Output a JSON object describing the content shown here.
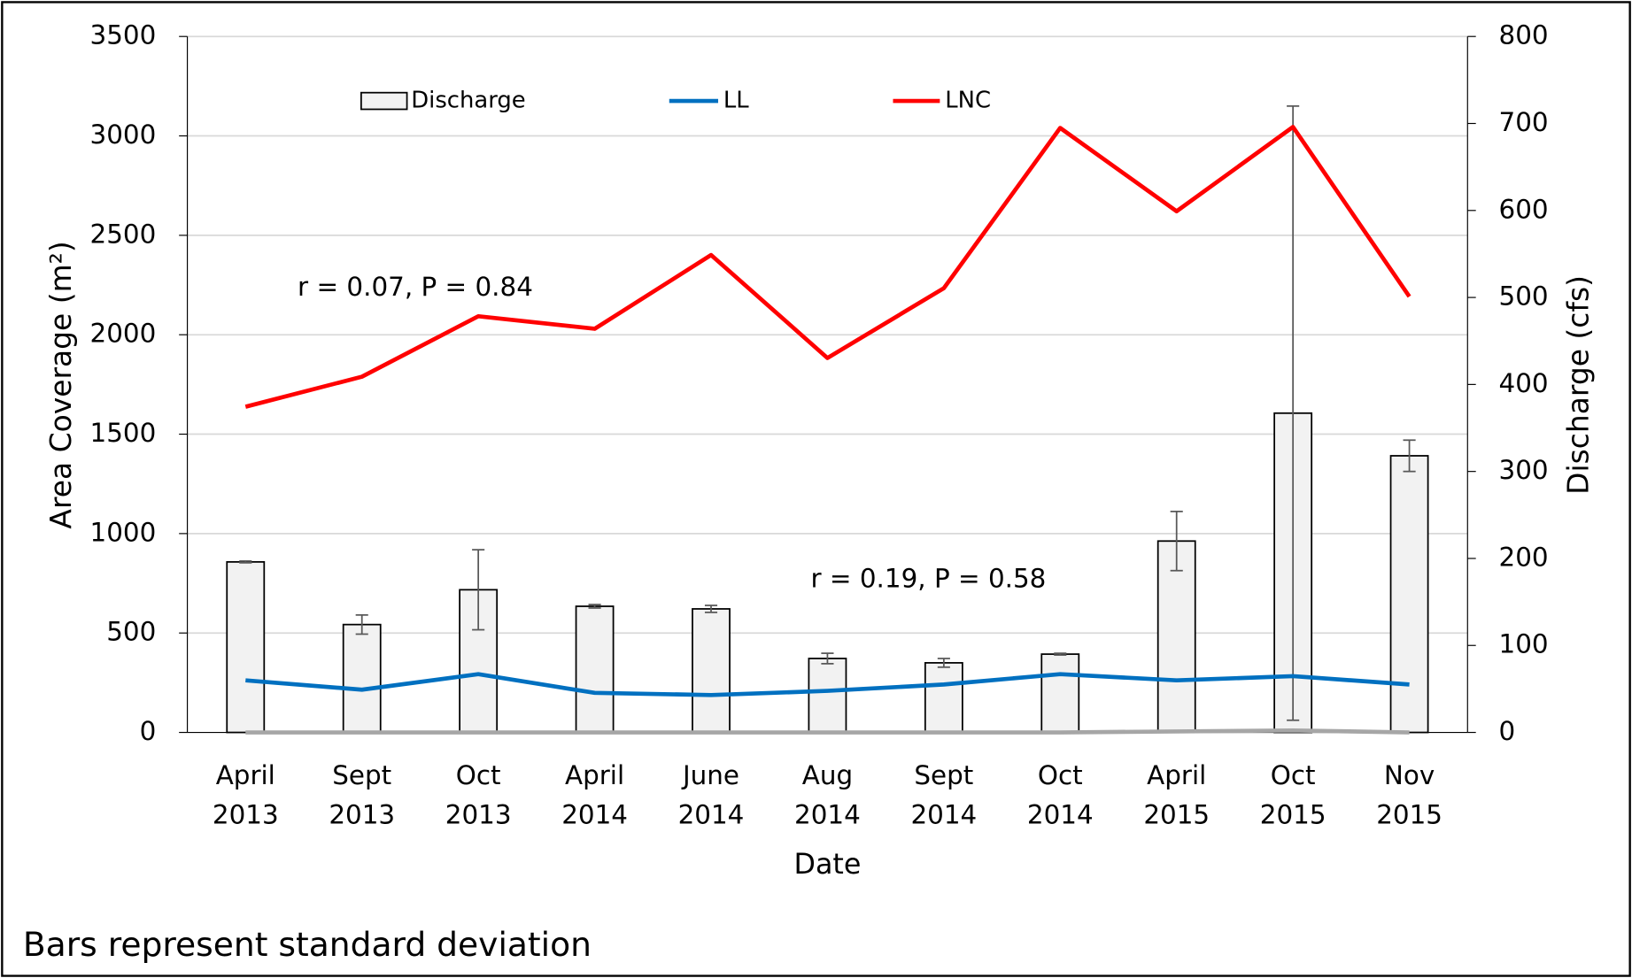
{
  "chart_data": {
    "type": "bar_line",
    "title_x": "Date",
    "ylabel": "Area Coverage (m²)",
    "y2label": "Discharge (cfs)",
    "footnote": "Bars represent standard deviation",
    "annotations": [
      "r = 0.07, P = 0.84",
      "r = 0.19, P = 0.58"
    ],
    "categories": [
      [
        "April",
        "2013"
      ],
      [
        "Sept",
        "2013"
      ],
      [
        "Oct",
        "2013"
      ],
      [
        "April",
        "2014"
      ],
      [
        "June",
        "2014"
      ],
      [
        "Aug",
        "2014"
      ],
      [
        "Sept",
        "2014"
      ],
      [
        "Oct",
        "2014"
      ],
      [
        "April",
        "2015"
      ],
      [
        "Oct",
        "2015"
      ],
      [
        "Nov",
        "2015"
      ]
    ],
    "series": [
      {
        "name": "Discharge",
        "type": "bar",
        "axis": "y2",
        "color": "#f2f2f2",
        "values": [
          196,
          124,
          164,
          145,
          142,
          85,
          80,
          90,
          220,
          367,
          318
        ],
        "errors": [
          1,
          11,
          46,
          2,
          4,
          6,
          5,
          1,
          34,
          353,
          18
        ]
      },
      {
        "name": "LL",
        "type": "line",
        "color": "#0070c0",
        "values": [
          262,
          215,
          293,
          199,
          188,
          209,
          241,
          293,
          262,
          283,
          241
        ]
      },
      {
        "name": "LNC",
        "type": "line",
        "color": "#ff0000",
        "values": [
          1638,
          1789,
          2093,
          2030,
          2401,
          1883,
          2234,
          3040,
          2621,
          3045,
          2192
        ]
      },
      {
        "type": "line",
        "color": "#a6a6a6",
        "values": [
          0,
          0,
          0,
          0,
          0,
          0,
          0,
          0,
          5,
          10,
          0
        ]
      }
    ],
    "ylim": [
      0,
      3500
    ],
    "yticks": [
      0,
      500,
      1000,
      1500,
      2000,
      2500,
      3000,
      3500
    ],
    "y2lim": [
      0,
      800
    ],
    "y2ticks": [
      0,
      100,
      200,
      300,
      400,
      500,
      600,
      700,
      800
    ],
    "grid": true,
    "legend": "top"
  }
}
